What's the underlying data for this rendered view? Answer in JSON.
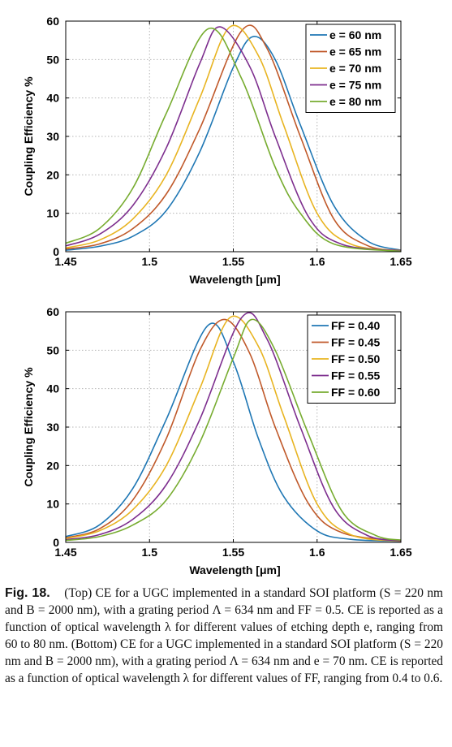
{
  "chart_data": [
    {
      "type": "line",
      "xlabel": "Wavelength [μm]",
      "ylabel": "Coupling Efficiency %",
      "xlim": [
        1.45,
        1.65
      ],
      "ylim": [
        0,
        60
      ],
      "xticks": [
        "1.45",
        "1.5",
        "1.55",
        "1.6",
        "1.65"
      ],
      "yticks": [
        "0",
        "10",
        "20",
        "30",
        "40",
        "50",
        "60"
      ],
      "grid": true,
      "legend_position": "top-right",
      "series": [
        {
          "name": "e = 60 nm",
          "color": "#1f77b4",
          "x": [
            1.45,
            1.47,
            1.49,
            1.51,
            1.53,
            1.55,
            1.562,
            1.575,
            1.59,
            1.61,
            1.63,
            1.65
          ],
          "y": [
            0.4,
            1.4,
            4.0,
            10.7,
            26.0,
            48.0,
            56.0,
            50.0,
            33.0,
            12.0,
            2.8,
            0.4
          ]
        },
        {
          "name": "e = 65 nm",
          "color": "#c0592a",
          "x": [
            1.45,
            1.47,
            1.49,
            1.51,
            1.53,
            1.555,
            1.57,
            1.59,
            1.61,
            1.63,
            1.65
          ],
          "y": [
            0.7,
            2.0,
            6.0,
            15.0,
            32.0,
            57.5,
            53.0,
            30.0,
            8.5,
            1.6,
            0.3
          ]
        },
        {
          "name": "e = 70 nm",
          "color": "#e8b421",
          "x": [
            1.45,
            1.47,
            1.49,
            1.51,
            1.53,
            1.548,
            1.565,
            1.58,
            1.6,
            1.62,
            1.65
          ],
          "y": [
            1.0,
            3.0,
            8.5,
            20.0,
            40.0,
            58.5,
            51.0,
            33.0,
            10.0,
            2.0,
            0.2
          ]
        },
        {
          "name": "e = 75 nm",
          "color": "#7d2e8e",
          "x": [
            1.45,
            1.47,
            1.49,
            1.51,
            1.53,
            1.542,
            1.56,
            1.575,
            1.595,
            1.615,
            1.65
          ],
          "y": [
            1.5,
            4.5,
            12.0,
            27.0,
            49.0,
            58.5,
            48.0,
            30.0,
            9.0,
            1.9,
            0.2
          ]
        },
        {
          "name": "e = 80 nm",
          "color": "#77ac30",
          "x": [
            1.45,
            1.47,
            1.49,
            1.51,
            1.535,
            1.555,
            1.575,
            1.59,
            1.61,
            1.65
          ],
          "y": [
            2.2,
            6.0,
            16.5,
            36.0,
            58.0,
            45.0,
            22.0,
            10.0,
            2.0,
            0.1
          ]
        }
      ]
    },
    {
      "type": "line",
      "xlabel": "Wavelength [μm]",
      "ylabel": "Coupling Efficiency %",
      "xlim": [
        1.45,
        1.65
      ],
      "ylim": [
        0,
        60
      ],
      "xticks": [
        "1.45",
        "1.5",
        "1.55",
        "1.6",
        "1.65"
      ],
      "yticks": [
        "0",
        "10",
        "20",
        "30",
        "40",
        "50",
        "60"
      ],
      "grid": true,
      "legend_position": "top-right",
      "series": [
        {
          "name": "FF = 0.40",
          "color": "#1f77b4",
          "x": [
            1.45,
            1.47,
            1.49,
            1.51,
            1.535,
            1.55,
            1.565,
            1.58,
            1.6,
            1.62,
            1.65
          ],
          "y": [
            1.5,
            4.5,
            14.0,
            32.0,
            56.5,
            47.0,
            27.0,
            12.0,
            3.0,
            0.8,
            0.3
          ]
        },
        {
          "name": "FF = 0.45",
          "color": "#c0592a",
          "x": [
            1.45,
            1.47,
            1.49,
            1.51,
            1.53,
            1.545,
            1.56,
            1.575,
            1.595,
            1.615,
            1.65
          ],
          "y": [
            1.2,
            3.5,
            11.0,
            27.0,
            50.0,
            58.0,
            49.0,
            30.0,
            10.0,
            2.5,
            0.4
          ]
        },
        {
          "name": "FF = 0.50",
          "color": "#e8b421",
          "x": [
            1.45,
            1.47,
            1.49,
            1.51,
            1.53,
            1.548,
            1.565,
            1.58,
            1.6,
            1.62,
            1.65
          ],
          "y": [
            1.0,
            3.0,
            8.5,
            20.0,
            40.0,
            58.5,
            51.0,
            33.0,
            10.0,
            2.0,
            0.3
          ]
        },
        {
          "name": "FF = 0.55",
          "color": "#7d2e8e",
          "x": [
            1.45,
            1.47,
            1.49,
            1.51,
            1.53,
            1.555,
            1.57,
            1.59,
            1.61,
            1.63,
            1.65
          ],
          "y": [
            0.7,
            2.0,
            6.0,
            15.0,
            32.0,
            58.5,
            53.0,
            30.0,
            9.0,
            1.8,
            0.4
          ]
        },
        {
          "name": "FF = 0.60",
          "color": "#77ac30",
          "x": [
            1.45,
            1.47,
            1.49,
            1.51,
            1.53,
            1.55,
            1.561,
            1.575,
            1.595,
            1.615,
            1.635,
            1.65
          ],
          "y": [
            0.5,
            1.5,
            4.5,
            11.0,
            26.0,
            48.0,
            58.0,
            50.0,
            28.0,
            8.0,
            1.8,
            0.6
          ]
        }
      ]
    }
  ],
  "caption": {
    "fig_label": "Fig. 18.",
    "text": "(Top) CE for a UGC implemented in a standard SOI platform (S = 220 nm and B = 2000 nm), with a grating period Λ = 634 nm and FF = 0.5. CE is reported as a function of optical wavelength λ for different values of etching depth e, ranging from 60 to 80 nm. (Bottom) CE for a UGC implemented in a standard SOI platform (S = 220 nm and B = 2000 nm), with a grating period Λ = 634 nm and e = 70 nm. CE is reported as a function of optical wavelength λ for different values of FF, ranging from 0.4 to 0.6."
  }
}
